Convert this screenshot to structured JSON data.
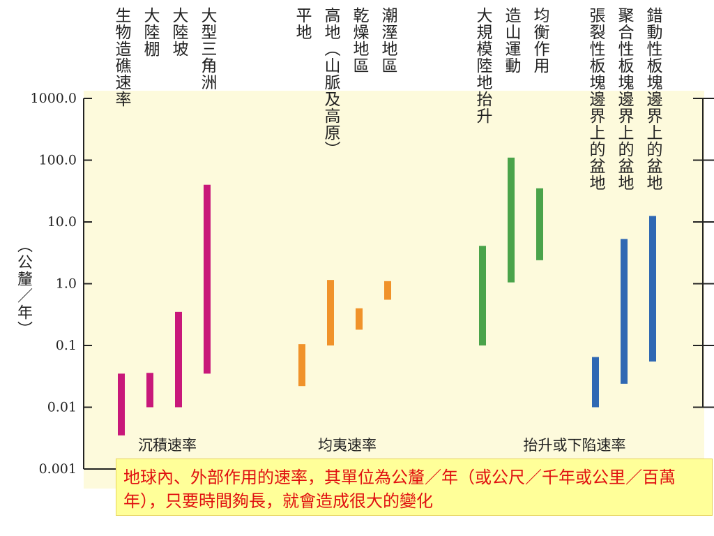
{
  "chart_data": {
    "type": "bar",
    "scale": "log",
    "ylabel": "（公釐／年）",
    "ylim": [
      0.001,
      1000
    ],
    "ticks": [
      {
        "value": 1000,
        "label": "1000.0"
      },
      {
        "value": 100,
        "label": "100.0"
      },
      {
        "value": 10,
        "label": "10.0"
      },
      {
        "value": 1,
        "label": "1.0"
      },
      {
        "value": 0.1,
        "label": "0.1"
      },
      {
        "value": 0.01,
        "label": "0.01"
      },
      {
        "value": 0.001,
        "label": "0.001"
      }
    ],
    "groups": [
      {
        "name": "沉積速率",
        "color": "#c8187a",
        "bars": [
          {
            "label": "生物造礁速率",
            "low": 0.0035,
            "high": 0.035
          },
          {
            "label": "大陸棚",
            "low": 0.01,
            "high": 0.036
          },
          {
            "label": "大陸坡",
            "low": 0.01,
            "high": 0.35
          },
          {
            "label": "大型三角洲",
            "low": 0.035,
            "high": 40
          }
        ]
      },
      {
        "name": "均夷速率",
        "color": "#f0922a",
        "bars": [
          {
            "label": "平地",
            "low": 0.022,
            "high": 0.105
          },
          {
            "label": "高地（山脈及高原）",
            "low": 0.1,
            "high": 1.15
          },
          {
            "label": "乾燥地區",
            "low": 0.18,
            "high": 0.4
          },
          {
            "label": "潮溼地區",
            "low": 0.55,
            "high": 1.1
          }
        ]
      },
      {
        "name": "抬升或下陷速率",
        "color_uplift": "#4aa34a",
        "color_subsidence": "#2f68b3",
        "bars": [
          {
            "label": "大規模陸地抬升",
            "low": 0.1,
            "high": 4.1,
            "color": "#4aa34a"
          },
          {
            "label": "造山運動",
            "low": 1.05,
            "high": 110,
            "color": "#4aa34a"
          },
          {
            "label": "均衡作用",
            "low": 2.4,
            "high": 35,
            "color": "#4aa34a"
          },
          {
            "label": "張裂性板塊邊界上的盆地",
            "low": 0.01,
            "high": 0.065,
            "color": "#2f68b3"
          },
          {
            "label": "聚合性板塊邊界上的盆地",
            "low": 0.024,
            "high": 5.3,
            "color": "#2f68b3"
          },
          {
            "label": "錯動性板塊邊界上的盆地",
            "low": 0.055,
            "high": 12.5,
            "color": "#2f68b3"
          }
        ]
      }
    ],
    "grid": false,
    "background_color": "#fdfadc"
  },
  "caption": "地球內、外部作用的速率，其單位為公釐／年（或公尺／千年或公里／百萬年），只要時間夠長，就會造成很大的變化"
}
